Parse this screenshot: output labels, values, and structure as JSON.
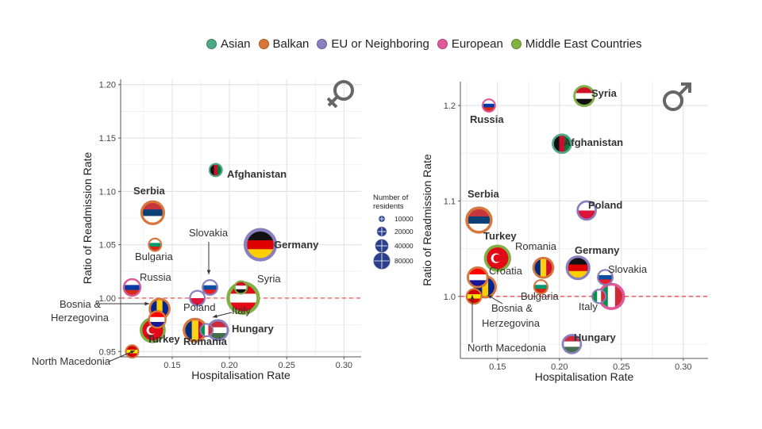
{
  "legend": {
    "items": [
      {
        "label": "Asian",
        "color": "#4eaa86"
      },
      {
        "label": "Balkan",
        "color": "#d9773a"
      },
      {
        "label": "EU or Neighboring",
        "color": "#8a7fc1"
      },
      {
        "label": "European",
        "color": "#e0589a"
      },
      {
        "label": "Middle East Countries",
        "color": "#7fb241"
      }
    ]
  },
  "size_legend": {
    "title_line1": "Number of",
    "title_line2": "residents",
    "entries": [
      {
        "label": "10000",
        "residents": 10000
      },
      {
        "label": "20000",
        "residents": 20000
      },
      {
        "label": "40000",
        "residents": 40000
      },
      {
        "label": "80000",
        "residents": 80000
      }
    ]
  },
  "chart_data": [
    {
      "type": "scatter",
      "title": "",
      "symbol": "female",
      "xlabel": "Hospitalisation Rate",
      "ylabel": "Ratio of Readmission Rate",
      "xlim": [
        0.105,
        0.315
      ],
      "ylim": [
        0.945,
        1.205
      ],
      "xticks": [
        0.15,
        0.2,
        0.25,
        0.3
      ],
      "xtick_labels": [
        "0.15",
        "0.20",
        "0.25",
        "0.30"
      ],
      "yticks": [
        0.95,
        1.0,
        1.05,
        1.1,
        1.15,
        1.2
      ],
      "ytick_labels": [
        "0.95",
        "1.00",
        "1.05",
        "1.10",
        "1.15",
        "1.20"
      ],
      "reference_line": 1.0,
      "points": [
        {
          "country": "Afghanistan",
          "group": "Asian",
          "x": 0.188,
          "y": 1.12,
          "size": 10000,
          "bold": true
        },
        {
          "country": "Serbia",
          "group": "Balkan",
          "x": 0.133,
          "y": 1.08,
          "size": 40000,
          "bold": true
        },
        {
          "country": "Bulgaria",
          "group": "Balkan",
          "x": 0.135,
          "y": 1.05,
          "size": 10000,
          "bold": false
        },
        {
          "country": "Germany",
          "group": "EU or Neighboring",
          "x": 0.227,
          "y": 1.05,
          "size": 80000,
          "bold": true
        },
        {
          "country": "Slovakia",
          "group": "EU or Neighboring",
          "x": 0.183,
          "y": 1.01,
          "size": 15000,
          "bold": false
        },
        {
          "country": "Russia",
          "group": "European",
          "x": 0.115,
          "y": 1.01,
          "size": 20000,
          "bold": false
        },
        {
          "country": "Syria",
          "group": "Middle East Countries",
          "x": 0.21,
          "y": 1.01,
          "size": 10000,
          "bold": false
        },
        {
          "country": "Poland",
          "group": "EU or Neighboring",
          "x": 0.172,
          "y": 1.0,
          "size": 15000,
          "bold": false
        },
        {
          "country": "Italy",
          "group": "EU or Neighboring",
          "x": 0.18,
          "y": 0.97,
          "size": 10000,
          "bold": false
        },
        {
          "country": "Turkey (large)",
          "group": "Middle East Countries",
          "x": 0.212,
          "y": 1.0,
          "size": 80000,
          "bold": false
        },
        {
          "country": "Bosnia & Herzegovina",
          "group": "Balkan",
          "x": 0.139,
          "y": 0.99,
          "size": 30000,
          "bold": false
        },
        {
          "country": "Croatia",
          "group": "Balkan",
          "x": 0.137,
          "y": 0.98,
          "size": 20000,
          "bold": false
        },
        {
          "country": "Turkey",
          "group": "Middle East Countries",
          "x": 0.133,
          "y": 0.97,
          "size": 45000,
          "bold": true
        },
        {
          "country": "Romania",
          "group": "Balkan",
          "x": 0.17,
          "y": 0.97,
          "size": 40000,
          "bold": true
        },
        {
          "country": "Hungary",
          "group": "EU or Neighboring",
          "x": 0.19,
          "y": 0.97,
          "size": 30000,
          "bold": true
        },
        {
          "country": "North Macedonia",
          "group": "Balkan",
          "x": 0.115,
          "y": 0.95,
          "size": 10000,
          "bold": false
        }
      ]
    },
    {
      "type": "scatter",
      "title": "",
      "symbol": "male",
      "xlabel": "Hospitalisation Rate",
      "ylabel": "Ratio of Readmission Rate",
      "xlim": [
        0.12,
        0.32
      ],
      "ylim": [
        0.935,
        1.225
      ],
      "xticks": [
        0.15,
        0.2,
        0.25,
        0.3
      ],
      "xtick_labels": [
        "0.15",
        "0.20",
        "0.25",
        "0.30"
      ],
      "yticks": [
        1.0,
        1.1,
        1.2
      ],
      "ytick_labels": [
        "1.0",
        "1.1",
        "1.2"
      ],
      "reference_line": 1.0,
      "points": [
        {
          "country": "Syria",
          "group": "Middle East Countries",
          "x": 0.22,
          "y": 1.21,
          "size": 30000,
          "bold": true
        },
        {
          "country": "Russia",
          "group": "European",
          "x": 0.143,
          "y": 1.2,
          "size": 10000,
          "bold": true
        },
        {
          "country": "Afghanistan",
          "group": "Asian",
          "x": 0.202,
          "y": 1.16,
          "size": 25000,
          "bold": true
        },
        {
          "country": "Serbia",
          "group": "Balkan",
          "x": 0.135,
          "y": 1.08,
          "size": 50000,
          "bold": true
        },
        {
          "country": "Poland",
          "group": "EU or Neighboring",
          "x": 0.222,
          "y": 1.09,
          "size": 25000,
          "bold": true
        },
        {
          "country": "Turkey",
          "group": "Middle East Countries",
          "x": 0.15,
          "y": 1.04,
          "size": 50000,
          "bold": true
        },
        {
          "country": "Romania",
          "group": "Balkan",
          "x": 0.187,
          "y": 1.03,
          "size": 30000,
          "bold": false
        },
        {
          "country": "Germany",
          "group": "EU or Neighboring",
          "x": 0.215,
          "y": 1.03,
          "size": 40000,
          "bold": true
        },
        {
          "country": "Slovakia",
          "group": "EU or Neighboring",
          "x": 0.237,
          "y": 1.02,
          "size": 15000,
          "bold": false
        },
        {
          "country": "Croatia",
          "group": "Balkan",
          "x": 0.134,
          "y": 1.02,
          "size": 30000,
          "bold": false
        },
        {
          "country": "Bosnia & Herzegovina",
          "group": "Balkan",
          "x": 0.14,
          "y": 1.01,
          "size": 35000,
          "bold": false
        },
        {
          "country": "Bulgaria",
          "group": "Balkan",
          "x": 0.185,
          "y": 1.01,
          "size": 12000,
          "bold": false
        },
        {
          "country": "Italy (small)",
          "group": "EU or Neighboring",
          "x": 0.232,
          "y": 1.0,
          "size": 12000,
          "bold": false
        },
        {
          "country": "Italy",
          "group": "European",
          "x": 0.242,
          "y": 1.0,
          "size": 50000,
          "bold": false
        },
        {
          "country": "North Macedonia",
          "group": "Balkan",
          "x": 0.131,
          "y": 1.0,
          "size": 15000,
          "bold": false
        },
        {
          "country": "Hungary",
          "group": "EU or Neighboring",
          "x": 0.21,
          "y": 0.95,
          "size": 25000,
          "bold": true
        }
      ]
    }
  ],
  "labels": {
    "female": [
      {
        "text": "Afghanistan",
        "bold": true
      },
      {
        "text": "Serbia",
        "bold": true
      },
      {
        "text": "Bulgaria",
        "bold": false
      },
      {
        "text": "Slovakia",
        "bold": false
      },
      {
        "text": "Germany",
        "bold": true
      },
      {
        "text": "Russia",
        "bold": false
      },
      {
        "text": "Syria",
        "bold": false
      },
      {
        "text": "Bosnia &",
        "bold": false
      },
      {
        "text": "Herzegovina",
        "bold": false
      },
      {
        "text": "Poland",
        "bold": false
      },
      {
        "text": "Italy",
        "bold": false
      },
      {
        "text": "Turkey",
        "bold": true
      },
      {
        "text": "Romania",
        "bold": true
      },
      {
        "text": "Hungary",
        "bold": true
      },
      {
        "text": "North Macedonia",
        "bold": false
      }
    ],
    "male": [
      {
        "text": "Syria",
        "bold": true
      },
      {
        "text": "Russia",
        "bold": true
      },
      {
        "text": "Afghanistan",
        "bold": true
      },
      {
        "text": "Serbia",
        "bold": true
      },
      {
        "text": "Poland",
        "bold": true
      },
      {
        "text": "Turkey",
        "bold": true
      },
      {
        "text": "Romania",
        "bold": false
      },
      {
        "text": "Germany",
        "bold": true
      },
      {
        "text": "Croatia",
        "bold": false
      },
      {
        "text": "Slovakia",
        "bold": false
      },
      {
        "text": "Bosnia &",
        "bold": false
      },
      {
        "text": "Herzegovina",
        "bold": false
      },
      {
        "text": "Bulgaria",
        "bold": false
      },
      {
        "text": "Italy",
        "bold": false
      },
      {
        "text": "North Macedonia",
        "bold": false
      },
      {
        "text": "Hungary",
        "bold": true
      }
    ]
  }
}
